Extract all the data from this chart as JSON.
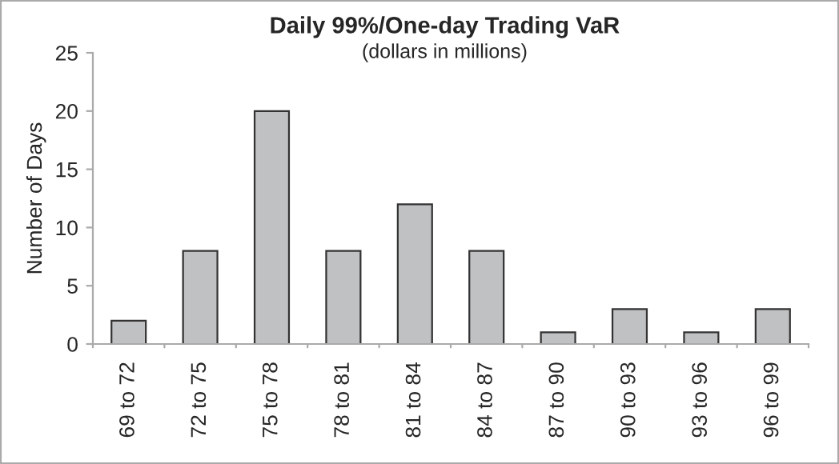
{
  "chart_data": {
    "type": "bar",
    "title": "Daily 99%/One-day Trading VaR",
    "subtitle": "(dollars in millions)",
    "ylabel": "Number of Days",
    "categories": [
      "69 to 72",
      "72 to 75",
      "75 to 78",
      "78 to 81",
      "81 to 84",
      "84 to 87",
      "87 to 90",
      "90 to 93",
      "93 to 96",
      "96 to 99"
    ],
    "values": [
      2,
      8,
      20,
      8,
      12,
      8,
      1,
      3,
      1,
      3
    ],
    "color": "#c0c1c3",
    "ylim": [
      0,
      25
    ],
    "yticks": [
      0,
      5,
      10,
      15,
      20,
      25
    ],
    "grid": false,
    "legend": false
  }
}
